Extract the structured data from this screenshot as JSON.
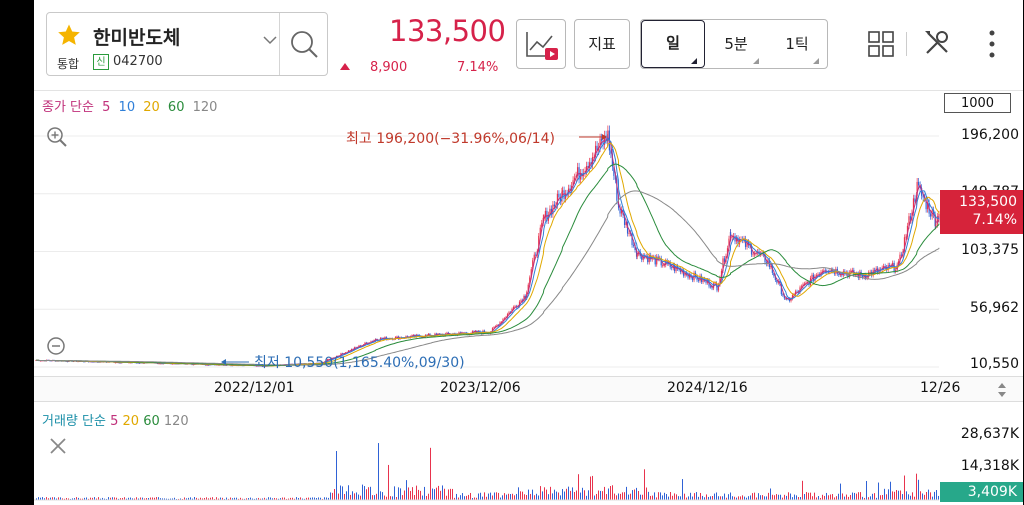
{
  "stock": {
    "name": "한미반도체",
    "market": "통합",
    "listing_badge": "신",
    "code": "042700",
    "price": "133,500",
    "change": "8,900",
    "change_pct": "7.14%",
    "direction": "up"
  },
  "toolbar": {
    "indicator_label": "지표",
    "periods": [
      {
        "label": "일",
        "active": true
      },
      {
        "label": "5분",
        "active": false
      },
      {
        "label": "1틱",
        "active": false
      }
    ]
  },
  "price_legend": {
    "prefix": "종가 단순",
    "ma": [
      {
        "label": "5",
        "color": "#c0307a"
      },
      {
        "label": "10",
        "color": "#2f7fd8"
      },
      {
        "label": "20",
        "color": "#e0a800"
      },
      {
        "label": "60",
        "color": "#2a8c3c"
      },
      {
        "label": "120",
        "color": "#888888"
      }
    ]
  },
  "candle_count": "1000",
  "y_axis": [
    "196,200",
    "149,787",
    "103,375",
    "56,962",
    "10,550"
  ],
  "current_badge": {
    "price": "133,500",
    "pct": "7.14%"
  },
  "annotations": {
    "high": "최고 196,200(−31.96%,06/14)",
    "low": "최저 10,550(1,165.40%,09/30)"
  },
  "x_axis": [
    "2022/12/01",
    "2023/12/06",
    "2024/12/16",
    "12/26"
  ],
  "volume_legend": {
    "prefix": "거래량 단순",
    "ma": [
      {
        "label": "5",
        "color": "#c0307a"
      },
      {
        "label": "20",
        "color": "#e0a800"
      },
      {
        "label": "60",
        "color": "#2a8c3c"
      },
      {
        "label": "120",
        "color": "#888888"
      }
    ]
  },
  "volume_axis": [
    "28,637K",
    "14,318K"
  ],
  "volume_badge": "3,409K",
  "chart_data": {
    "type": "candlestick",
    "x_ticks": [
      "2022/12/01",
      "2023/12/06",
      "2024/12/16",
      "12/26"
    ],
    "ylim": [
      10550,
      196200
    ],
    "close_series_approx": [
      [
        "start",
        16000
      ],
      [
        "2022/12/01",
        11500
      ],
      [
        "2023/03",
        13500
      ],
      [
        "2023/06",
        33000
      ],
      [
        "2023/09",
        36000
      ],
      [
        "2023/12/06",
        39000
      ],
      [
        "2024/02",
        68000
      ],
      [
        "2024/03",
        130000
      ],
      [
        "2024/04",
        150000
      ],
      [
        "2024/06/14",
        196200
      ],
      [
        "2024/07",
        140000
      ],
      [
        "2024/08",
        102000
      ],
      [
        "2024/10",
        90000
      ],
      [
        "2024/12/16",
        75000
      ],
      [
        "2025/01",
        118000
      ],
      [
        "2025/03",
        95000
      ],
      [
        "2025/04",
        63000
      ],
      [
        "2025/06",
        90000
      ],
      [
        "2025/08",
        84000
      ],
      [
        "2025/10",
        92000
      ],
      [
        "2025/11",
        155000
      ],
      [
        "2025/12",
        128000
      ],
      [
        "12/26",
        133500
      ]
    ],
    "volume_max": 28637
  }
}
